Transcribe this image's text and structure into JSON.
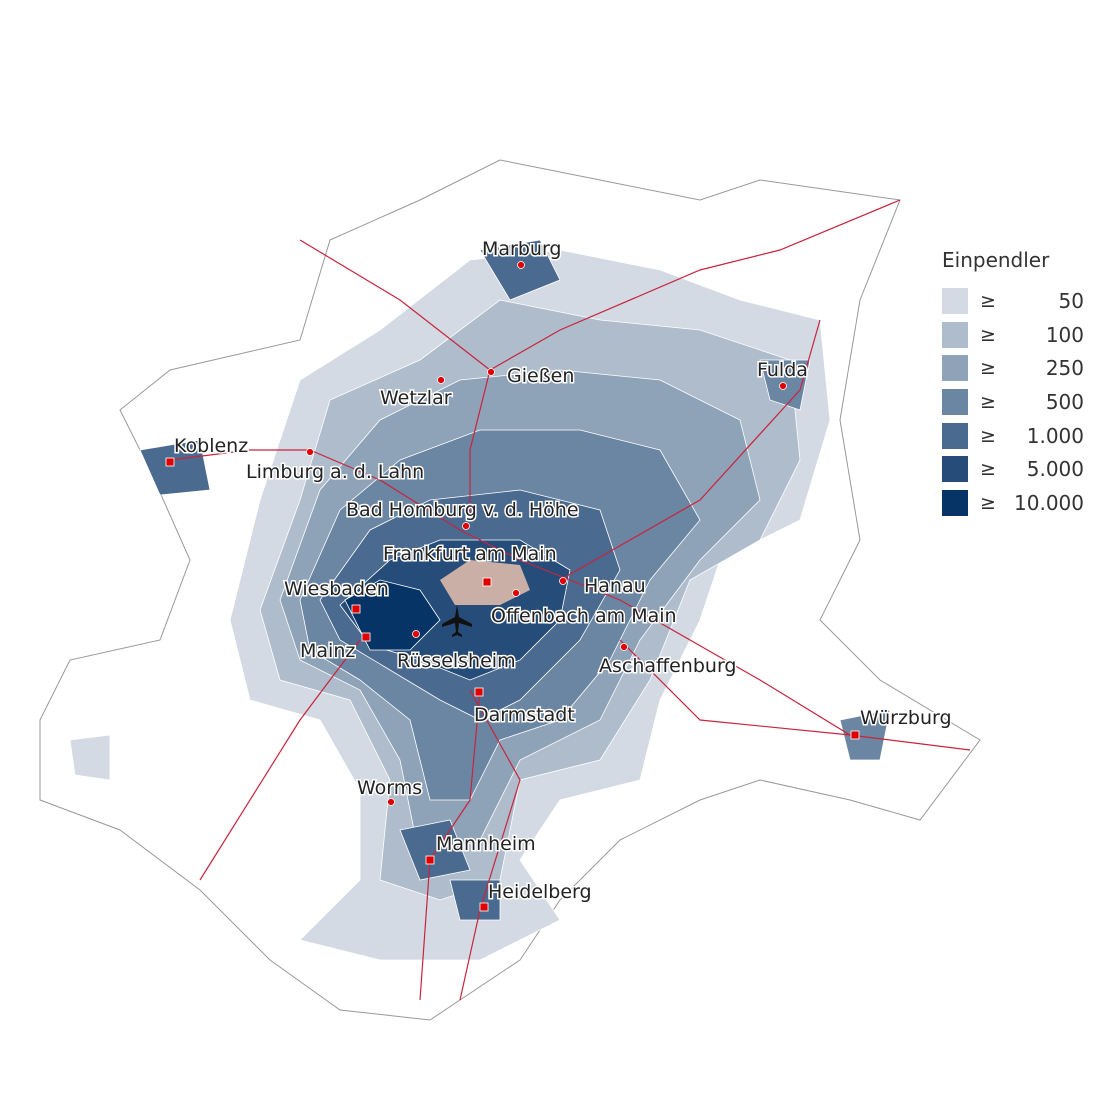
{
  "legend": {
    "title": "Einpendler",
    "symbol": "≥",
    "classes": [
      {
        "label": "50",
        "color": "#d3dae3"
      },
      {
        "label": "100",
        "color": "#aebccc"
      },
      {
        "label": "250",
        "color": "#8ea3b8"
      },
      {
        "label": "500",
        "color": "#6b86a3"
      },
      {
        "label": "1.000",
        "color": "#4a6a8f"
      },
      {
        "label": "5.000",
        "color": "#264d7a"
      },
      {
        "label": "10.000",
        "color": "#063466"
      }
    ]
  },
  "center_color": "#c9afa6",
  "rail_color": "#c8243c",
  "marker_color": "#e00000",
  "cities": [
    "Marburg",
    "Gießen",
    "Wetzlar",
    "Fulda",
    "Koblenz",
    "Limburg a. d. Lahn",
    "Bad Homburg v. d. Höhe",
    "Frankfurt am Main",
    "Hanau",
    "Wiesbaden",
    "Offenbach am Main",
    "Mainz",
    "Rüsselsheim",
    "Aschaffenburg",
    "Darmstadt",
    "Würzburg",
    "Worms",
    "Mannheim",
    "Heidelberg"
  ],
  "airport_icon": "airplane-icon"
}
